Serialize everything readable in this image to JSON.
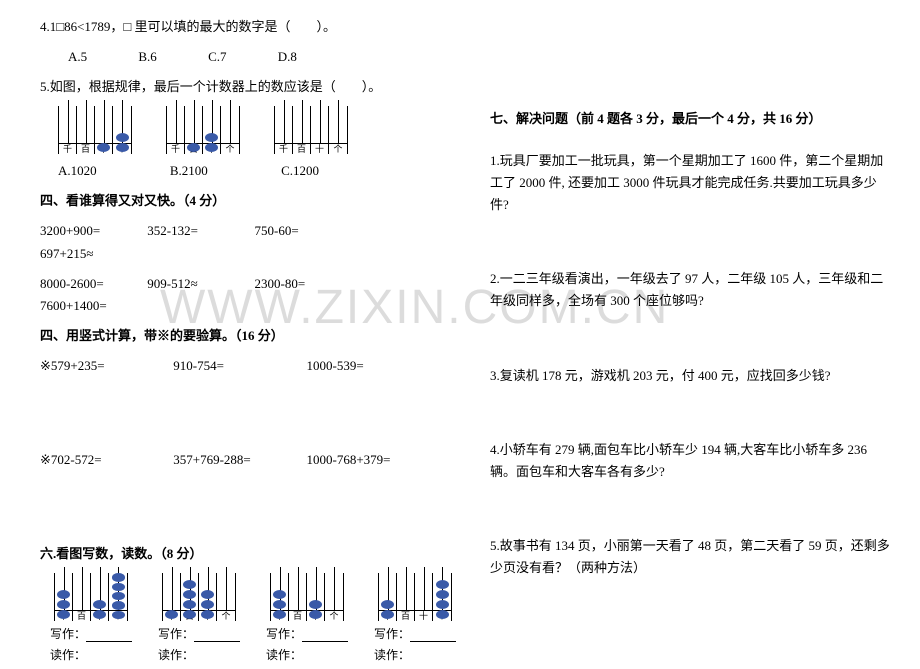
{
  "watermark": "WWW.ZIXIN.COM.CN",
  "left": {
    "q4": {
      "text": "4.1□86<1789，□ 里可以填的最大的数字是（　　）。",
      "opts": [
        "A.5",
        "B.6",
        "C.7",
        "D.8"
      ]
    },
    "q5": {
      "text": "5.如图，根据规律，最后一个计数器上的数应该是（　　）。",
      "opts": [
        "A.1020",
        "B.2100",
        "C.1200"
      ],
      "colLabels": [
        "千",
        "百",
        "十",
        "个"
      ],
      "abaci": [
        {
          "beads": [
            0,
            0,
            1,
            2
          ]
        },
        {
          "beads": [
            0,
            1,
            2,
            0
          ]
        },
        {
          "beads": [
            0,
            0,
            0,
            0
          ]
        }
      ]
    },
    "sec4a": {
      "title": "四、看谁算得又对又快。（4 分）",
      "rows": [
        [
          "3200+900=",
          "352-132=",
          "750-60=",
          "697+215≈"
        ],
        [
          "8000-2600=",
          "909-512≈",
          "2300-80=",
          "7600+1400="
        ]
      ]
    },
    "sec4b": {
      "title": "四、用竖式计算，带※的要验算。（16 分）",
      "row1": [
        "※579+235=",
        "910-754=",
        "1000-539="
      ],
      "row2": [
        "※702-572=",
        "357+769-288=",
        "1000-768+379="
      ]
    },
    "sec6": {
      "title": "六.看图写数，读数。（8 分）",
      "colLabels": [
        "千",
        "百",
        "十",
        "个"
      ],
      "abaci": [
        {
          "beads": [
            3,
            0,
            2,
            5
          ]
        },
        {
          "beads": [
            1,
            4,
            3,
            0
          ]
        },
        {
          "beads": [
            3,
            0,
            2,
            0
          ]
        },
        {
          "beads": [
            2,
            0,
            0,
            4
          ]
        }
      ],
      "writeLabel": "写作：",
      "readLabel": "读作："
    }
  },
  "right": {
    "title": "七、解决问题（前 4 题各 3 分，最后一个 4 分，共 16 分）",
    "q1": "1.玩具厂要加工一批玩具，第一个星期加工了 1600 件，第二个星期加工了 2000 件, 还要加工 3000 件玩具才能完成任务.共要加工玩具多少件?",
    "q2": "2.一二三年级看演出，一年级去了 97 人，二年级 105 人，三年级和二年级同样多，全场有 300 个座位够吗?",
    "q3": "3.复读机 178 元，游戏机 203 元，付 400 元，应找回多少钱?",
    "q4": "4.小轿车有 279 辆,面包车比小轿车少 194 辆,大客车比小轿车多 236 辆。面包车和大客车各有多少?",
    "q5": "5.故事书有 134 页，小丽第一天看了 48 页，第二天看了 59 页，还剩多少页没有看？（两种方法）"
  },
  "style": {
    "bg": "#ffffff",
    "text": "#000000",
    "bead": "#3a5aa8",
    "wm": "#dcdcdc",
    "fontSize": 13
  }
}
